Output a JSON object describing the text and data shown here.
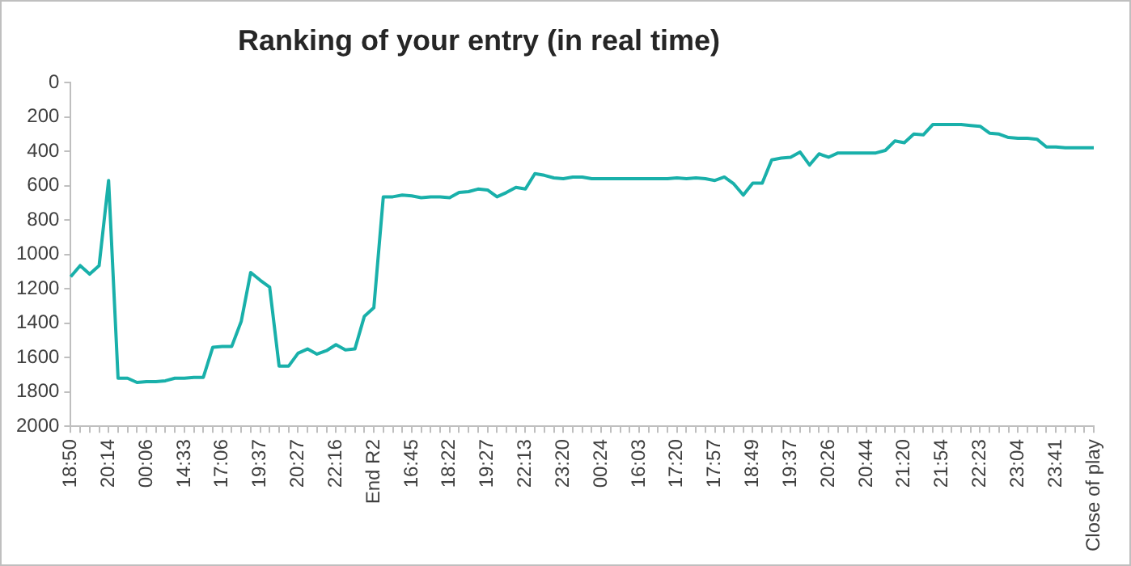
{
  "chart_data": {
    "type": "line",
    "title": "Ranking of your entry (in real time)",
    "categories": [
      "18:50",
      null,
      null,
      null,
      "20:14",
      null,
      null,
      null,
      "00:06",
      null,
      null,
      null,
      "14:33",
      null,
      null,
      null,
      "17:06",
      null,
      null,
      null,
      "19:37",
      null,
      null,
      null,
      "20:27",
      null,
      null,
      null,
      "22:16",
      null,
      null,
      null,
      "End R2",
      null,
      null,
      null,
      "16:45",
      null,
      null,
      null,
      "18:22",
      null,
      null,
      null,
      "19:27",
      null,
      null,
      null,
      "22:13",
      null,
      null,
      null,
      "23:20",
      null,
      null,
      null,
      "00:24",
      null,
      null,
      null,
      "16:03",
      null,
      null,
      null,
      "17:20",
      null,
      null,
      null,
      "17:57",
      null,
      null,
      null,
      "18:49",
      null,
      null,
      null,
      "19:37",
      null,
      null,
      null,
      "20:26",
      null,
      null,
      null,
      "20:44",
      null,
      null,
      null,
      "21:20",
      null,
      null,
      null,
      "21:54",
      null,
      null,
      null,
      "22:23",
      null,
      null,
      null,
      "23:04",
      null,
      null,
      null,
      "23:41",
      null,
      null,
      null,
      "Close of play"
    ],
    "series": [
      {
        "color": "#19b0aa",
        "values": [
          1130,
          1065,
          1115,
          1065,
          570,
          1720,
          1720,
          1745,
          1740,
          1740,
          1735,
          1720,
          1720,
          1715,
          1715,
          1540,
          1535,
          1535,
          1390,
          1105,
          1150,
          1190,
          1650,
          1650,
          1575,
          1550,
          1580,
          1560,
          1525,
          1555,
          1550,
          1360,
          1310,
          665,
          665,
          655,
          660,
          670,
          665,
          665,
          670,
          640,
          635,
          620,
          625,
          665,
          640,
          610,
          620,
          530,
          540,
          555,
          560,
          550,
          550,
          560,
          560,
          560,
          560,
          560,
          560,
          560,
          560,
          560,
          555,
          560,
          555,
          560,
          570,
          550,
          590,
          655,
          585,
          585,
          450,
          440,
          435,
          405,
          480,
          415,
          435,
          410,
          410,
          410,
          410,
          410,
          395,
          340,
          350,
          300,
          305,
          245,
          245,
          245,
          245,
          250,
          255,
          295,
          300,
          320,
          325,
          325,
          330,
          375,
          375,
          380,
          380,
          380,
          380
        ]
      }
    ],
    "ylim": [
      2000,
      0
    ],
    "yticks": [
      0,
      200,
      400,
      600,
      800,
      1000,
      1200,
      1400,
      1600,
      1800,
      2000
    ],
    "grid": false,
    "legend": false,
    "marker": "none",
    "line_style": "solid"
  }
}
